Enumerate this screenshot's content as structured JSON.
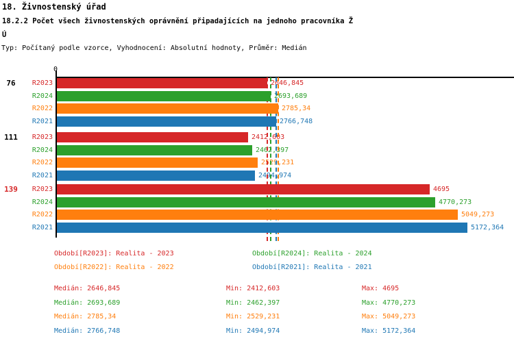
{
  "header": {
    "title": "18. Živnostenský úřad",
    "subtitle_line1": "18.2.2 Počet všech živnostenských oprávnění připadajících na jednoho pracovníka Ž",
    "subtitle_line2": "Ú",
    "meta": "Typ: Počítaný podle vzorce, Vyhodnocení: Absolutní hodnoty, Průměr: Medián"
  },
  "colors": {
    "R2023": "#d62728",
    "R2024": "#2ca02c",
    "R2022": "#ff7f0e",
    "R2021": "#1f77b4",
    "axis": "#000000",
    "group_label_default": "#000000",
    "group_label_highlight": "#d62728"
  },
  "chart_data": {
    "type": "bar",
    "orientation": "horizontal",
    "axis_zero_label": "0",
    "xlim": [
      0,
      5400
    ],
    "max_value": 5172.364,
    "grid": false,
    "series_order": [
      "R2023",
      "R2024",
      "R2022",
      "R2021"
    ],
    "groups": [
      {
        "label": "76",
        "label_color": "#000000",
        "bars": [
          {
            "series": "R2023",
            "value": 2646.845,
            "display": "2646,845",
            "color": "#d62728"
          },
          {
            "series": "R2024",
            "value": 2693.689,
            "display": "2693,689",
            "color": "#2ca02c"
          },
          {
            "series": "R2022",
            "value": 2785.34,
            "display": "2785,34",
            "color": "#ff7f0e"
          },
          {
            "series": "R2021",
            "value": 2766.748,
            "display": "2766,748",
            "color": "#1f77b4"
          }
        ]
      },
      {
        "label": "111",
        "label_color": "#000000",
        "bars": [
          {
            "series": "R2023",
            "value": 2412.603,
            "display": "2412,603",
            "color": "#d62728"
          },
          {
            "series": "R2024",
            "value": 2462.397,
            "display": "2462,397",
            "color": "#2ca02c"
          },
          {
            "series": "R2022",
            "value": 2529.231,
            "display": "2529,231",
            "color": "#ff7f0e"
          },
          {
            "series": "R2021",
            "value": 2494.974,
            "display": "2494,974",
            "color": "#1f77b4"
          }
        ]
      },
      {
        "label": "139",
        "label_color": "#d62728",
        "bars": [
          {
            "series": "R2023",
            "value": 4695,
            "display": "4695",
            "color": "#d62728"
          },
          {
            "series": "R2024",
            "value": 4770.273,
            "display": "4770,273",
            "color": "#2ca02c"
          },
          {
            "series": "R2022",
            "value": 5049.273,
            "display": "5049,273",
            "color": "#ff7f0e"
          },
          {
            "series": "R2021",
            "value": 5172.364,
            "display": "5172,364",
            "color": "#1f77b4"
          }
        ]
      }
    ],
    "median_lines": [
      {
        "series": "R2023",
        "value": 2646.845,
        "color": "#d62728"
      },
      {
        "series": "R2024",
        "value": 2693.689,
        "color": "#2ca02c"
      },
      {
        "series": "R2021",
        "value": 2766.748,
        "color": "#1f77b4"
      },
      {
        "series": "R2022",
        "value": 2785.34,
        "color": "#ff7f0e"
      }
    ]
  },
  "legend": [
    {
      "series": "R2023",
      "label": "Období[R2023]: Realita - 2023",
      "color": "#d62728"
    },
    {
      "series": "R2024",
      "label": "Období[R2024]: Realita - 2024",
      "color": "#2ca02c"
    },
    {
      "series": "R2022",
      "label": "Období[R2022]: Realita - 2022",
      "color": "#ff7f0e"
    },
    {
      "series": "R2021",
      "label": "Období[R2021]: Realita - 2021",
      "color": "#1f77b4"
    }
  ],
  "stats": [
    {
      "series": "R2023",
      "color": "#d62728",
      "median": "Medián: 2646,845",
      "min": "Min: 2412,603",
      "max": "Max: 4695"
    },
    {
      "series": "R2024",
      "color": "#2ca02c",
      "median": "Medián: 2693,689",
      "min": "Min: 2462,397",
      "max": "Max: 4770,273"
    },
    {
      "series": "R2022",
      "color": "#ff7f0e",
      "median": "Medián: 2785,34",
      "min": "Min: 2529,231",
      "max": "Max: 5049,273"
    },
    {
      "series": "R2021",
      "color": "#1f77b4",
      "median": "Medián: 2766,748",
      "min": "Min: 2494,974",
      "max": "Max: 5172,364"
    }
  ]
}
